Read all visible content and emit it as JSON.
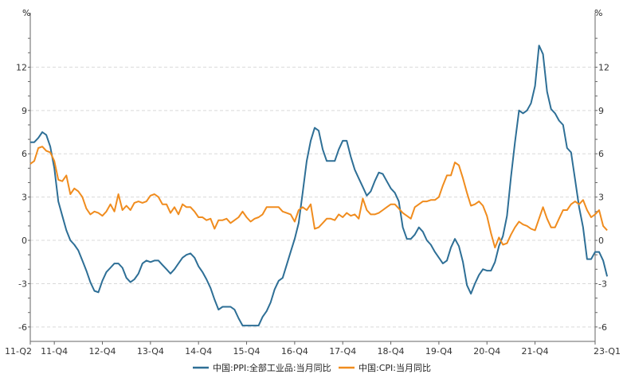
{
  "chart_data": {
    "type": "line",
    "units": {
      "left": "%",
      "right": "%"
    },
    "ylim": [
      -7,
      15
    ],
    "yticks": [
      -6,
      -3,
      0,
      3,
      6,
      9,
      12
    ],
    "grid": true,
    "legend_position": "bottom",
    "x_tick_labels": [
      "11-Q2",
      "11-Q4",
      "12-Q4",
      "13-Q4",
      "14-Q4",
      "15-Q4",
      "16-Q4",
      "17-Q4",
      "18-Q4",
      "19-Q4",
      "20-Q4",
      "21-Q4",
      "23-Q1"
    ],
    "x_tick_months": [
      "2011-04",
      "2011-10",
      "2012-10",
      "2013-10",
      "2014-10",
      "2015-10",
      "2016-10",
      "2017-10",
      "2018-10",
      "2019-10",
      "2020-10",
      "2021-10",
      "2023-01"
    ],
    "series": [
      {
        "name": "中国:PPI:全部工业品:当月同比",
        "color": "#2e6f96",
        "start": "2011-04",
        "values": [
          6.8,
          6.8,
          7.1,
          7.5,
          7.3,
          6.5,
          5.0,
          2.7,
          1.7,
          0.7,
          0.0,
          -0.3,
          -0.7,
          -1.4,
          -2.1,
          -2.9,
          -3.5,
          -3.6,
          -2.8,
          -2.2,
          -1.9,
          -1.6,
          -1.6,
          -1.9,
          -2.6,
          -2.9,
          -2.7,
          -2.3,
          -1.6,
          -1.4,
          -1.5,
          -1.4,
          -1.4,
          -1.7,
          -2.0,
          -2.3,
          -2.0,
          -1.6,
          -1.2,
          -1.0,
          -0.9,
          -1.2,
          -1.8,
          -2.2,
          -2.7,
          -3.3,
          -4.1,
          -4.8,
          -4.6,
          -4.6,
          -4.6,
          -4.8,
          -5.4,
          -5.9,
          -5.9,
          -5.9,
          -5.9,
          -5.9,
          -5.3,
          -4.9,
          -4.3,
          -3.4,
          -2.8,
          -2.6,
          -1.7,
          -0.8,
          0.1,
          1.2,
          3.3,
          5.5,
          6.9,
          7.8,
          7.6,
          6.3,
          5.5,
          5.5,
          5.5,
          6.3,
          6.9,
          6.9,
          5.8,
          4.9,
          4.3,
          3.7,
          3.1,
          3.4,
          4.1,
          4.7,
          4.6,
          4.1,
          3.6,
          3.3,
          2.7,
          0.9,
          0.1,
          0.1,
          0.4,
          0.9,
          0.6,
          0.0,
          -0.3,
          -0.8,
          -1.2,
          -1.6,
          -1.4,
          -0.5,
          0.1,
          -0.4,
          -1.5,
          -3.1,
          -3.7,
          -3.0,
          -2.4,
          -2.0,
          -2.1,
          -2.1,
          -1.5,
          -0.4,
          0.3,
          1.7,
          4.4,
          6.8,
          9.0,
          8.8,
          9.0,
          9.5,
          10.7,
          13.5,
          12.9,
          10.3,
          9.1,
          8.8,
          8.3,
          8.0,
          6.4,
          6.1,
          4.2,
          2.3,
          0.9,
          -1.3,
          -1.3,
          -0.8,
          -0.8,
          -1.4,
          -2.5
        ]
      },
      {
        "name": "中国:CPI:当月同比",
        "color": "#f08c1e",
        "start": "2011-04",
        "values": [
          5.3,
          5.5,
          6.4,
          6.5,
          6.2,
          6.1,
          5.5,
          4.2,
          4.1,
          4.5,
          3.2,
          3.6,
          3.4,
          3.0,
          2.2,
          1.8,
          2.0,
          1.9,
          1.7,
          2.0,
          2.5,
          2.0,
          3.2,
          2.1,
          2.4,
          2.1,
          2.6,
          2.7,
          2.6,
          2.7,
          3.1,
          3.2,
          3.0,
          2.5,
          2.5,
          1.9,
          2.3,
          1.8,
          2.5,
          2.3,
          2.3,
          2.0,
          1.6,
          1.6,
          1.4,
          1.5,
          0.8,
          1.4,
          1.4,
          1.5,
          1.2,
          1.4,
          1.6,
          2.0,
          1.6,
          1.3,
          1.5,
          1.6,
          1.8,
          2.3,
          2.3,
          2.3,
          2.3,
          2.0,
          1.9,
          1.8,
          1.3,
          2.1,
          2.3,
          2.1,
          2.5,
          0.8,
          0.9,
          1.2,
          1.5,
          1.5,
          1.4,
          1.8,
          1.6,
          1.9,
          1.7,
          1.8,
          1.5,
          2.9,
          2.1,
          1.8,
          1.8,
          1.9,
          2.1,
          2.3,
          2.5,
          2.5,
          2.2,
          1.9,
          1.7,
          1.5,
          2.3,
          2.5,
          2.7,
          2.7,
          2.8,
          2.8,
          3.0,
          3.8,
          4.5,
          4.5,
          5.4,
          5.2,
          4.3,
          3.3,
          2.4,
          2.5,
          2.7,
          2.4,
          1.7,
          0.5,
          -0.5,
          0.2,
          -0.3,
          -0.2,
          0.4,
          0.9,
          1.3,
          1.1,
          1.0,
          0.8,
          0.7,
          1.5,
          2.3,
          1.5,
          0.9,
          0.9,
          1.5,
          2.1,
          2.1,
          2.5,
          2.7,
          2.5,
          2.8,
          2.1,
          1.6,
          1.8,
          2.1,
          1.0,
          0.7
        ]
      }
    ]
  }
}
